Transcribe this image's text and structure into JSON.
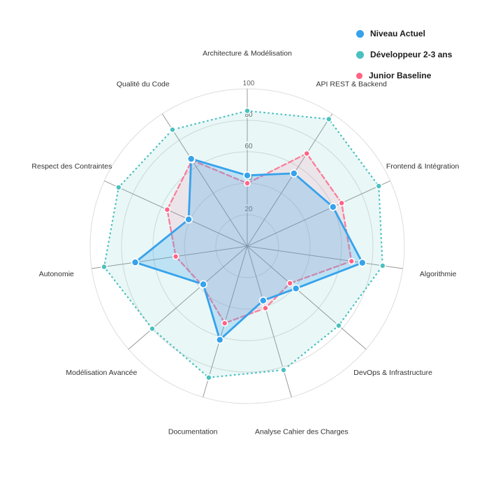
{
  "chart_data": {
    "type": "radar",
    "title": "",
    "categories": [
      "Architecture & Modélisation",
      "API REST & Backend",
      "Frontend & Intégration",
      "Algorithmie",
      "DevOps & Infrastructure",
      "Analyse Cahier des Charges",
      "Documentation",
      "Modélisation Avancée",
      "Autonomie",
      "Respect des Contraintes",
      "Qualité du Code"
    ],
    "series": [
      {
        "name": "Niveau Actuel",
        "color": "#36A2EB",
        "fill": "rgba(54,162,235,0.25)",
        "line_style": "solid",
        "point_radius": 5,
        "values": [
          45,
          55,
          60,
          74,
          41,
          36,
          62,
          37,
          72,
          41,
          66
        ]
      },
      {
        "name": "Développeur 2-3 ans",
        "color": "#4BC0C0",
        "fill": "rgba(75,192,192,0.12)",
        "line_style": "dotted",
        "point_radius": 4,
        "values": [
          86,
          96,
          92,
          87,
          77,
          82,
          87,
          80,
          92,
          90,
          88
        ]
      },
      {
        "name": "Junior Baseline",
        "color": "#FF6384",
        "fill": "rgba(255,99,132,0.12)",
        "line_style": "dashed",
        "point_radius": 4,
        "values": [
          40,
          70,
          66,
          67,
          36,
          41,
          51,
          38,
          46,
          56,
          65
        ]
      }
    ],
    "scale": {
      "min": 0,
      "max": 100,
      "step": 20,
      "tick_labels": [
        "20",
        "40",
        "60",
        "80",
        "100"
      ]
    },
    "grid": true,
    "grid_ring_color": "#dddddd",
    "spoke_color": "#999999",
    "tick_color": "#666666",
    "axis_label_color": "#333333",
    "legend_position": "top-right"
  }
}
